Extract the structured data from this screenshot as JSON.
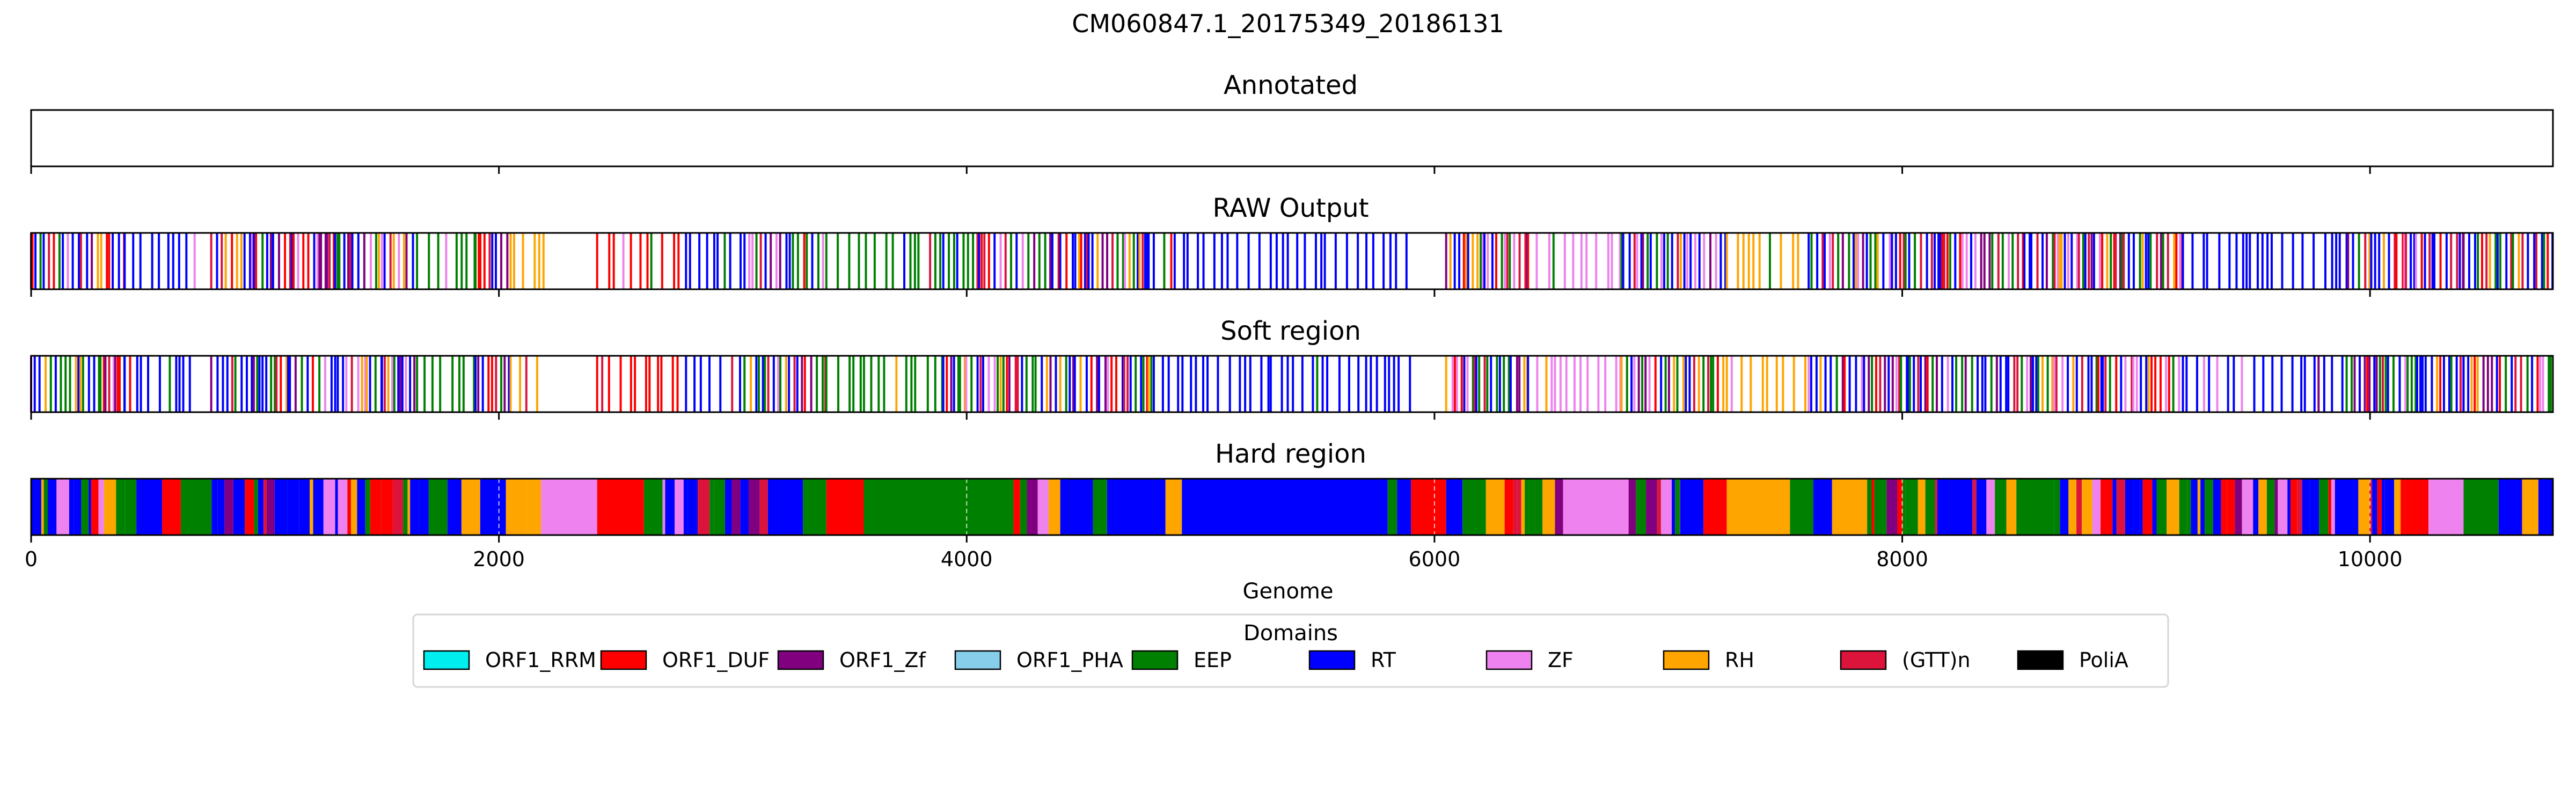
{
  "chart_data": {
    "type": "genome-track",
    "title": "CM060847.1_20175349_20186131",
    "xlabel": "Genome",
    "xlim": [
      0,
      10782
    ],
    "xticks": [
      0,
      2000,
      4000,
      6000,
      8000,
      10000
    ],
    "tick_labels": [
      "0",
      "2000",
      "4000",
      "6000",
      "8000",
      "10000"
    ],
    "legend": {
      "title": "Domains",
      "placement": "lower-center",
      "entries": [
        {
          "name": "ORF1_RRM",
          "color": "#00eeee"
        },
        {
          "name": "ORF1_DUF",
          "color": "#ff0000"
        },
        {
          "name": "ORF1_Zf",
          "color": "#800080"
        },
        {
          "name": "ORF1_PHA",
          "color": "#87ceeb"
        },
        {
          "name": "EEP",
          "color": "#008000"
        },
        {
          "name": "RT",
          "color": "#0000ff"
        },
        {
          "name": "ZF",
          "color": "#ee82ee"
        },
        {
          "name": "RH",
          "color": "#ffa500"
        },
        {
          "name": "(GTT)n",
          "color": "#dc143c"
        },
        {
          "name": "PoliA",
          "color": "#000000"
        }
      ]
    },
    "panels": [
      {
        "title": "Annotated",
        "mode": "empty",
        "segments": []
      },
      {
        "title": "RAW Output",
        "mode": "lines",
        "segments": [
          [
            0,
            400,
            "mix"
          ],
          [
            400,
            700,
            "RT"
          ],
          [
            770,
            1300,
            "mix"
          ],
          [
            1300,
            1500,
            "mix"
          ],
          [
            1500,
            1650,
            "mix"
          ],
          [
            1650,
            1900,
            "EEP"
          ],
          [
            1900,
            2050,
            "mix"
          ],
          [
            2050,
            2200,
            "RH"
          ],
          [
            2420,
            2800,
            "DUF"
          ],
          [
            2800,
            3050,
            "RT"
          ],
          [
            3050,
            3400,
            "mix"
          ],
          [
            3400,
            3900,
            "EEP"
          ],
          [
            3900,
            4400,
            "mix"
          ],
          [
            4400,
            4800,
            "mix"
          ],
          [
            4800,
            5300,
            "RT"
          ],
          [
            5300,
            5900,
            "RT"
          ],
          [
            6050,
            6400,
            "mix"
          ],
          [
            6400,
            6800,
            "ZF"
          ],
          [
            6800,
            7250,
            "mix"
          ],
          [
            7250,
            7600,
            "RH"
          ],
          [
            7600,
            8600,
            "mix"
          ],
          [
            8600,
            9200,
            "mix"
          ],
          [
            9200,
            9900,
            "RT"
          ],
          [
            9900,
            10400,
            "mix"
          ],
          [
            10400,
            10782,
            "mix"
          ]
        ]
      },
      {
        "title": "Soft region",
        "mode": "lines",
        "segments": [
          [
            0,
            400,
            "mix"
          ],
          [
            400,
            700,
            "RT"
          ],
          [
            770,
            1300,
            "mix"
          ],
          [
            1300,
            1500,
            "mix"
          ],
          [
            1500,
            1650,
            "mix"
          ],
          [
            1650,
            1900,
            "EEP"
          ],
          [
            1900,
            2050,
            "mix"
          ],
          [
            2050,
            2200,
            "RH"
          ],
          [
            2420,
            2800,
            "DUF"
          ],
          [
            2800,
            3050,
            "RT"
          ],
          [
            3050,
            3400,
            "mix"
          ],
          [
            3400,
            3900,
            "EEP"
          ],
          [
            3900,
            4400,
            "mix"
          ],
          [
            4400,
            4800,
            "mix"
          ],
          [
            4800,
            5300,
            "RT"
          ],
          [
            5300,
            5900,
            "RT"
          ],
          [
            6050,
            6400,
            "mix"
          ],
          [
            6400,
            6800,
            "ZF"
          ],
          [
            6800,
            7250,
            "mix"
          ],
          [
            7250,
            7600,
            "RH"
          ],
          [
            7600,
            8600,
            "mix"
          ],
          [
            8600,
            9200,
            "mix"
          ],
          [
            9200,
            9900,
            "RT"
          ],
          [
            9900,
            10400,
            "mix"
          ],
          [
            10400,
            10782,
            "mix"
          ]
        ]
      },
      {
        "title": "Hard region",
        "mode": "blocks",
        "segments": [
          [
            0,
            400,
            "mix"
          ],
          [
            400,
            450,
            "EEP"
          ],
          [
            450,
            560,
            "RT"
          ],
          [
            560,
            640,
            "DUF"
          ],
          [
            640,
            740,
            "EEP"
          ],
          [
            740,
            1250,
            "mix"
          ],
          [
            1250,
            1300,
            "ZF"
          ],
          [
            1300,
            1700,
            "mix"
          ],
          [
            1700,
            1780,
            "EEP"
          ],
          [
            1780,
            1840,
            "RT"
          ],
          [
            1840,
            1920,
            "RH"
          ],
          [
            1920,
            2030,
            "RT"
          ],
          [
            2030,
            2120,
            "RH"
          ],
          [
            2120,
            2180,
            "RH"
          ],
          [
            2180,
            2420,
            "ZF"
          ],
          [
            2420,
            2620,
            "DUF"
          ],
          [
            2620,
            2700,
            "EEP"
          ],
          [
            2700,
            2850,
            "mix"
          ],
          [
            2850,
            3150,
            "mix"
          ],
          [
            3150,
            3300,
            "RT"
          ],
          [
            3300,
            3400,
            "EEP"
          ],
          [
            3400,
            3560,
            "DUF"
          ],
          [
            3560,
            4200,
            "EEP"
          ],
          [
            4200,
            4350,
            "mix"
          ],
          [
            4350,
            4400,
            "RH"
          ],
          [
            4400,
            4540,
            "RT"
          ],
          [
            4540,
            4600,
            "EEP"
          ],
          [
            4600,
            4850,
            "RT"
          ],
          [
            4850,
            4920,
            "RH"
          ],
          [
            4920,
            5800,
            "RT"
          ],
          [
            5800,
            5840,
            "EEP"
          ],
          [
            5840,
            5900,
            "RT"
          ],
          [
            5900,
            6050,
            "DUF"
          ],
          [
            6050,
            6120,
            "RT"
          ],
          [
            6120,
            6220,
            "EEP"
          ],
          [
            6220,
            6300,
            "RH"
          ],
          [
            6300,
            6550,
            "mix"
          ],
          [
            6550,
            6830,
            "ZF"
          ],
          [
            6830,
            7050,
            "mix"
          ],
          [
            7050,
            7150,
            "RT"
          ],
          [
            7150,
            7250,
            "DUF"
          ],
          [
            7250,
            7520,
            "RH"
          ],
          [
            7520,
            7620,
            "EEP"
          ],
          [
            7620,
            7700,
            "RT"
          ],
          [
            7700,
            7850,
            "RH"
          ],
          [
            7850,
            8150,
            "mix"
          ],
          [
            8150,
            8300,
            "RT"
          ],
          [
            8300,
            8500,
            "mix"
          ],
          [
            8500,
            8650,
            "EEP"
          ],
          [
            8650,
            9500,
            "mix"
          ],
          [
            9500,
            9850,
            "mix"
          ],
          [
            9850,
            9950,
            "RT"
          ],
          [
            9950,
            10050,
            "mix"
          ],
          [
            10050,
            10150,
            "mix"
          ],
          [
            10150,
            10250,
            "DUF"
          ],
          [
            10250,
            10300,
            "ZF"
          ],
          [
            10300,
            10400,
            "ZF"
          ],
          [
            10400,
            10550,
            "EEP"
          ],
          [
            10550,
            10650,
            "RT"
          ],
          [
            10650,
            10720,
            "RH"
          ],
          [
            10720,
            10782,
            "RT"
          ]
        ]
      }
    ]
  }
}
